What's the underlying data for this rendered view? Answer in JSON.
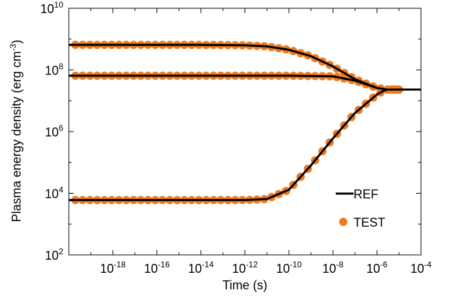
{
  "chart_data": {
    "type": "line",
    "xlabel": "Time (s)",
    "ylabel_main": "Plasma energy density (erg cm",
    "ylabel_sup": "-3",
    "ylabel_close": ")",
    "xscale": "log",
    "yscale": "log",
    "xlim": [
      1e-20,
      0.0001
    ],
    "ylim": [
      100,
      10000000000.0
    ],
    "x_ticks": [
      {
        "base": "10",
        "exp": "-18"
      },
      {
        "base": "10",
        "exp": "-16"
      },
      {
        "base": "10",
        "exp": "-14"
      },
      {
        "base": "10",
        "exp": "-12"
      },
      {
        "base": "10",
        "exp": "-10"
      },
      {
        "base": "10",
        "exp": "-8"
      },
      {
        "base": "10",
        "exp": "-6"
      },
      {
        "base": "10",
        "exp": "-4"
      }
    ],
    "y_ticks": [
      {
        "base": "10",
        "exp": "2"
      },
      {
        "base": "10",
        "exp": "4"
      },
      {
        "base": "10",
        "exp": "6"
      },
      {
        "base": "10",
        "exp": "8"
      },
      {
        "base": "10",
        "exp": "10"
      }
    ],
    "grid": false,
    "legend_position": "bottom-right",
    "colors": {
      "ref": "#000000",
      "test": "#f07a1e"
    },
    "series": [
      {
        "name": "REF",
        "style": "line",
        "curves": [
          {
            "x": [
              1e-20,
              1e-14,
              1e-12,
              1e-11,
              1e-10,
              1e-09,
              1e-08,
              1e-07,
              1e-06,
              3e-06,
              0.0001
            ],
            "y": [
              650000000.0,
              650000000.0,
              630000000.0,
              580000000.0,
              450000000.0,
              280000000.0,
              130000000.0,
              50000000.0,
              26000000.0,
              23000000.0,
              23000000.0
            ]
          },
          {
            "x": [
              1e-20,
              1e-10,
              1e-08,
              1e-07,
              1e-06,
              3e-06,
              0.0001
            ],
            "y": [
              65000000.0,
              65000000.0,
              62000000.0,
              45000000.0,
              26000000.0,
              23000000.0,
              23000000.0
            ]
          },
          {
            "x": [
              1e-20,
              1e-12,
              1e-11,
              1e-10,
              1e-09,
              1e-08,
              1e-07,
              1e-06,
              2e-06,
              3e-06,
              0.0001
            ],
            "y": [
              6000.0,
              6000.0,
              6500.0,
              13000.0,
              80000.0,
              600000.0,
              4000000.0,
              16000000.0,
              21000000.0,
              23000000.0,
              23000000.0
            ]
          }
        ]
      },
      {
        "name": "TEST",
        "style": "markers",
        "curves": [
          {
            "x": [
              1e-20,
              1e-14,
              1e-12,
              1e-11,
              1e-10,
              1e-09,
              1e-08,
              1e-07,
              1e-06,
              3e-06,
              1e-05
            ],
            "y": [
              650000000.0,
              650000000.0,
              630000000.0,
              580000000.0,
              450000000.0,
              280000000.0,
              130000000.0,
              50000000.0,
              26000000.0,
              23000000.0,
              23000000.0
            ]
          },
          {
            "x": [
              1e-20,
              1e-10,
              1e-08,
              1e-07,
              1e-06,
              3e-06,
              1e-05
            ],
            "y": [
              65000000.0,
              65000000.0,
              62000000.0,
              45000000.0,
              26000000.0,
              23000000.0,
              23000000.0
            ]
          },
          {
            "x": [
              1e-20,
              1e-12,
              1e-11,
              1e-10,
              1e-09,
              1e-08,
              1e-07,
              1e-06,
              2e-06,
              3e-06,
              1e-05
            ],
            "y": [
              6000.0,
              6000.0,
              6500.0,
              13000.0,
              80000.0,
              600000.0,
              4000000.0,
              16000000.0,
              21000000.0,
              23000000.0,
              23000000.0
            ]
          }
        ],
        "marker_spacing_decades": 0.33,
        "marker_x_range": [
          2e-20,
          1e-05
        ]
      }
    ]
  }
}
